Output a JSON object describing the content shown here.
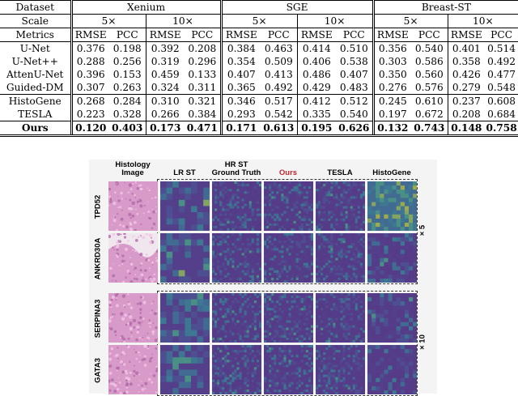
{
  "table": {
    "header_row1": {
      "label": "Dataset",
      "groups": [
        "Xenium",
        "SGE",
        "Breast-ST"
      ]
    },
    "header_row2": {
      "label": "Scale",
      "scales": [
        "5×",
        "10×",
        "5×",
        "10×",
        "5×",
        "10×"
      ]
    },
    "header_row3": {
      "label": "Metrics",
      "metrics": [
        "RMSE",
        "PCC",
        "RMSE",
        "PCC",
        "RMSE",
        "PCC",
        "RMSE",
        "PCC",
        "RMSE",
        "PCC",
        "RMSE",
        "PCC"
      ]
    },
    "rows": [
      {
        "method": "U-Net",
        "values": [
          "0.376",
          "0.198",
          "0.392",
          "0.208",
          "0.384",
          "0.463",
          "0.414",
          "0.510",
          "0.356",
          "0.540",
          "0.401",
          "0.514"
        ]
      },
      {
        "method": "U-Net++",
        "values": [
          "0.288",
          "0.256",
          "0.319",
          "0.296",
          "0.354",
          "0.509",
          "0.406",
          "0.538",
          "0.303",
          "0.586",
          "0.358",
          "0.492"
        ]
      },
      {
        "method": "AttenU-Net",
        "values": [
          "0.396",
          "0.153",
          "0.459",
          "0.133",
          "0.407",
          "0.413",
          "0.486",
          "0.407",
          "0.350",
          "0.560",
          "0.426",
          "0.477"
        ]
      },
      {
        "method": "Guided-DM",
        "values": [
          "0.307",
          "0.263",
          "0.324",
          "0.311",
          "0.365",
          "0.492",
          "0.429",
          "0.483",
          "0.276",
          "0.576",
          "0.279",
          "0.548"
        ]
      },
      {
        "method": "HistoGene",
        "values": [
          "0.268",
          "0.284",
          "0.310",
          "0.321",
          "0.346",
          "0.517",
          "0.412",
          "0.512",
          "0.245",
          "0.610",
          "0.237",
          "0.608"
        ]
      },
      {
        "method": "TESLA",
        "values": [
          "0.223",
          "0.328",
          "0.266",
          "0.384",
          "0.293",
          "0.542",
          "0.335",
          "0.540",
          "0.197",
          "0.672",
          "0.208",
          "0.684"
        ]
      },
      {
        "method": "Ours",
        "values": [
          "0.120",
          "0.403",
          "0.173",
          "0.471",
          "0.171",
          "0.613",
          "0.195",
          "0.626",
          "0.132",
          "0.743",
          "0.148",
          "0.758"
        ]
      }
    ]
  },
  "figure": {
    "columns": [
      {
        "line1": "Histology",
        "line2": "Image",
        "red": false
      },
      {
        "line1": "",
        "line2": "LR ST",
        "red": false
      },
      {
        "line1": "HR ST",
        "line2": "Ground Truth",
        "red": false
      },
      {
        "line1": "",
        "line2": "Ours",
        "red": true
      },
      {
        "line1": "",
        "line2": "TESLA",
        "red": false
      },
      {
        "line1": "",
        "line2": "HistoGene",
        "red": false
      }
    ],
    "genes": [
      "TPD52",
      "ANKRD30A",
      "SERPINA3",
      "GATA3"
    ],
    "scales": [
      "× 5",
      "× 10"
    ],
    "colors": {
      "histology": "#d89ac8",
      "st_low": "#46327e",
      "st_mid": "#277f8e",
      "st_high": "#bddf26",
      "ours_label": "#c0262d"
    }
  }
}
